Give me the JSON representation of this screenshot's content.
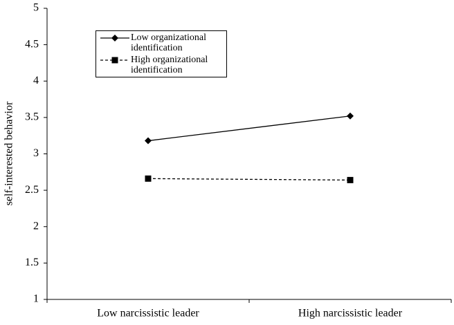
{
  "chart_data": {
    "type": "line",
    "ylabel": "self-interested behavior",
    "categories": [
      "Low narcissistic leader",
      "High narcissistic leader"
    ],
    "series": [
      {
        "name": "Low organizational identification",
        "color": "#000000",
        "dash": "solid",
        "marker": "diamond",
        "values": [
          3.18,
          3.52
        ]
      },
      {
        "name": "High organizational identification",
        "color": "#000000",
        "dash": "dashed",
        "marker": "square",
        "values": [
          2.66,
          2.64
        ]
      }
    ],
    "ylim": [
      1,
      5
    ],
    "yticks": [
      1,
      1.5,
      2,
      2.5,
      3,
      3.5,
      4,
      4.5,
      5
    ]
  }
}
